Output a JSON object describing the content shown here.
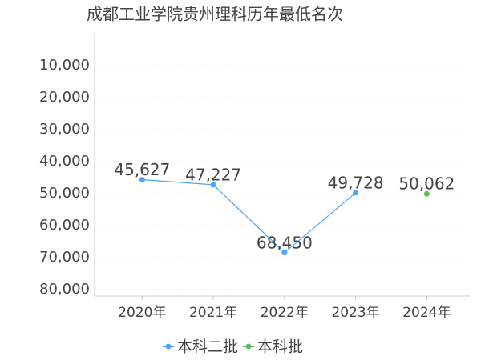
{
  "chart_data": {
    "type": "line",
    "title": "成都工业学院贵州理科历年最低名次",
    "categories": [
      "2020年",
      "2021年",
      "2022年",
      "2023年",
      "2024年"
    ],
    "series": [
      {
        "name": "本科二批",
        "color": "#4da6f5",
        "values": [
          45627,
          47227,
          68450,
          49728,
          null
        ],
        "value_labels": [
          "45,627",
          "47,227",
          "68,450",
          "49,728",
          null
        ]
      },
      {
        "name": "本科批",
        "color": "#5cbf5c",
        "values": [
          null,
          null,
          null,
          null,
          50062
        ],
        "value_labels": [
          null,
          null,
          null,
          null,
          "50,062"
        ]
      }
    ],
    "ylim": [
      0,
      82500
    ],
    "inverted": true,
    "yticks": [
      {
        "value": 10000,
        "label": "10,000"
      },
      {
        "value": 20000,
        "label": "20,000"
      },
      {
        "value": 30000,
        "label": "30,000"
      },
      {
        "value": 40000,
        "label": "40,000"
      },
      {
        "value": 50000,
        "label": "50,000"
      },
      {
        "value": 60000,
        "label": "60,000"
      },
      {
        "value": 70000,
        "label": "70,000"
      },
      {
        "value": 80000,
        "label": "80,000"
      }
    ],
    "grid": true,
    "legend": "bottom"
  }
}
